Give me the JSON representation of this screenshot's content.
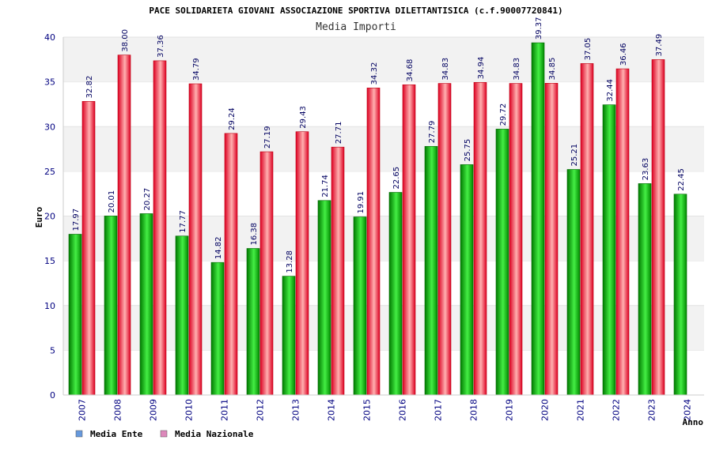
{
  "chart_data": {
    "type": "bar",
    "title": "PACE SOLIDARIETA GIOVANI ASSOCIAZIONE SPORTIVA DILETTANTISICA (c.f.90007720841)",
    "subtitle": "Media Importi",
    "xlabel": "Anno",
    "ylabel": "Euro",
    "ylim": [
      0,
      40
    ],
    "yticks": [
      0,
      5,
      10,
      15,
      20,
      25,
      30,
      35,
      40
    ],
    "categories": [
      "2007",
      "2008",
      "2009",
      "2010",
      "2011",
      "2012",
      "2013",
      "2014",
      "2015",
      "2016",
      "2017",
      "2018",
      "2019",
      "2020",
      "2021",
      "2022",
      "2023",
      "2024"
    ],
    "series": [
      {
        "name": "Media Ente",
        "values": [
          17.97,
          20.01,
          20.27,
          17.77,
          14.82,
          16.38,
          13.28,
          21.74,
          19.91,
          22.65,
          27.79,
          25.75,
          29.72,
          39.37,
          25.21,
          32.44,
          23.63,
          22.45
        ],
        "labels": [
          "17.97",
          "20.01",
          "20.27",
          "17.77",
          "14.82",
          "16.38",
          "13.28",
          "21.74",
          "19.91",
          "22.65",
          "27.79",
          "25.75",
          "29.72",
          "39.37",
          "25.21",
          "32.44",
          "23.63",
          "22.45"
        ]
      },
      {
        "name": "Media Nazionale",
        "values": [
          32.82,
          38.0,
          37.36,
          34.79,
          29.24,
          27.19,
          29.43,
          27.71,
          34.32,
          34.68,
          34.83,
          34.94,
          34.83,
          34.85,
          37.05,
          36.46,
          37.49,
          null
        ],
        "labels": [
          "32.82",
          "38.00",
          "37.36",
          "34.79",
          "29.24",
          "27.19",
          "29.43",
          "27.71",
          "34.32",
          "34.68",
          "34.83",
          "34.94",
          "34.83",
          "34.85",
          "37.05",
          "36.46",
          "37.49",
          ""
        ]
      }
    ],
    "legend": [
      {
        "name": "Media Ente",
        "swatch": "#6699dd"
      },
      {
        "name": "Media Nazionale",
        "swatch": "#dd88bb"
      }
    ],
    "legend_position": "bottom-left",
    "grid": true,
    "colors": {
      "ente_dark": "#008000",
      "ente_light": "#33dd33",
      "naz_dark": "#dd0022",
      "naz_light": "#ffaaaa",
      "band": "#f2f2f2",
      "tick_text": "#000080"
    }
  }
}
